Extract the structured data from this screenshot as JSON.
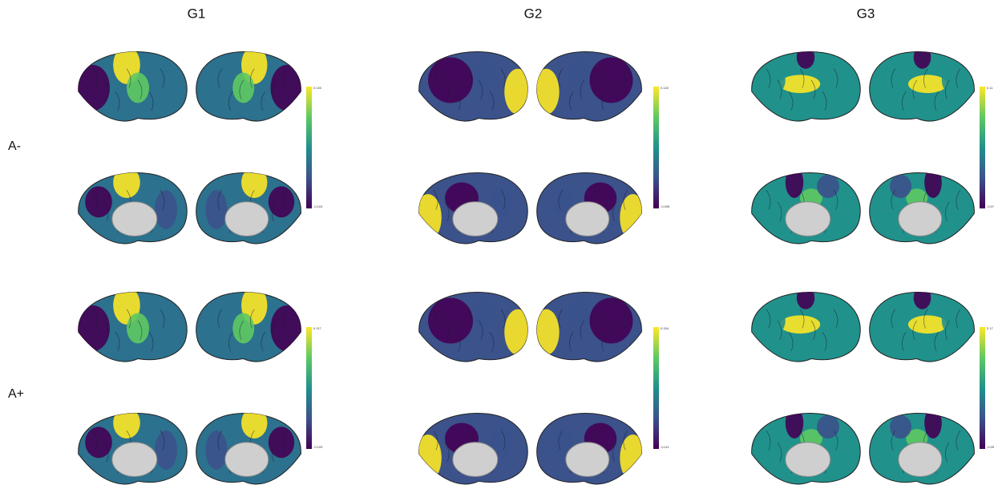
{
  "columns": [
    "G1",
    "G2",
    "G3"
  ],
  "rows": [
    "A-",
    "A+"
  ],
  "colorbars": [
    [
      {
        "max": "0.130",
        "min": "-0.104"
      },
      {
        "max": "0.140",
        "min": "-0.095"
      },
      {
        "max": "0.11",
        "min": "-0.07"
      }
    ],
    [
      {
        "max": "0.117",
        "min": "-0.109"
      },
      {
        "max": "0.154",
        "min": "-0.111"
      },
      {
        "max": "0.17",
        "min": "-0.09"
      }
    ]
  ]
}
